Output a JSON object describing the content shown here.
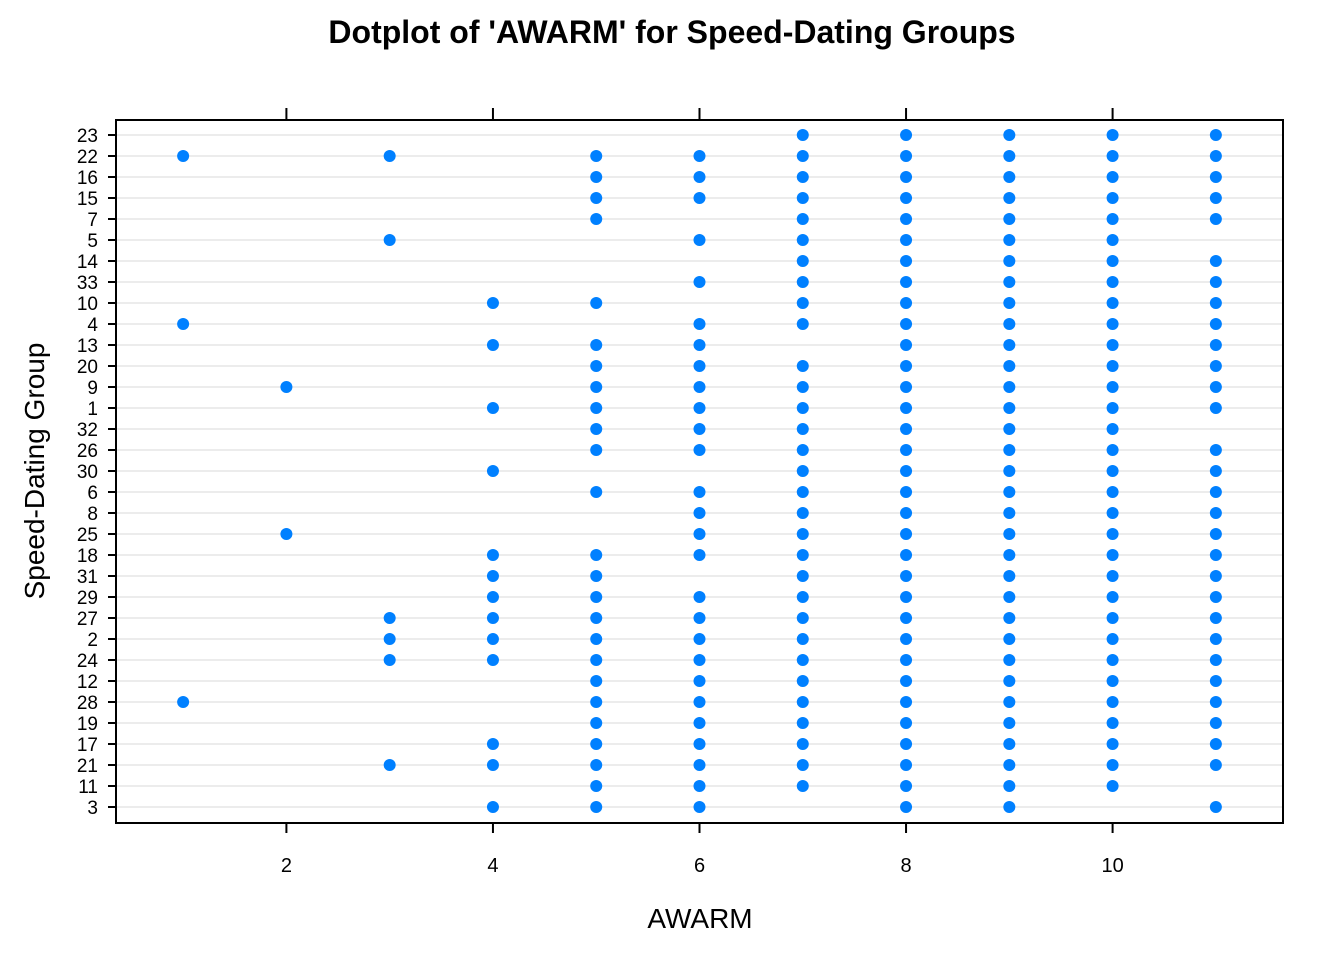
{
  "chart_data": {
    "type": "scatter",
    "title": "Dotplot of 'AWARM' for Speed-Dating Groups",
    "xlabel": "AWARM",
    "ylabel": "Speed-Dating Group",
    "xlim": [
      0.35,
      11.65
    ],
    "xticks": [
      2,
      4,
      6,
      8,
      10
    ],
    "grid": "horizontal",
    "point_color": "#0080ff",
    "categories": [
      "23",
      "22",
      "16",
      "15",
      "7",
      "5",
      "14",
      "33",
      "10",
      "4",
      "13",
      "20",
      "9",
      "1",
      "32",
      "26",
      "30",
      "6",
      "8",
      "25",
      "18",
      "31",
      "29",
      "27",
      "2",
      "24",
      "12",
      "28",
      "19",
      "17",
      "21",
      "11",
      "3"
    ],
    "points": [
      {
        "group": "23",
        "x": [
          7,
          8,
          9,
          10,
          11
        ]
      },
      {
        "group": "22",
        "x": [
          1,
          3,
          5,
          6,
          7,
          8,
          9,
          10,
          11
        ]
      },
      {
        "group": "16",
        "x": [
          5,
          6,
          7,
          8,
          9,
          10,
          11
        ]
      },
      {
        "group": "15",
        "x": [
          5,
          6,
          7,
          8,
          9,
          10,
          11
        ]
      },
      {
        "group": "7",
        "x": [
          5,
          7,
          8,
          9,
          10,
          11
        ]
      },
      {
        "group": "5",
        "x": [
          3,
          6,
          7,
          8,
          9,
          10
        ]
      },
      {
        "group": "14",
        "x": [
          7,
          8,
          9,
          10,
          11
        ]
      },
      {
        "group": "33",
        "x": [
          6,
          7,
          8,
          9,
          10,
          11
        ]
      },
      {
        "group": "10",
        "x": [
          4,
          5,
          7,
          8,
          9,
          10,
          11
        ]
      },
      {
        "group": "4",
        "x": [
          1,
          6,
          7,
          8,
          9,
          10,
          11
        ]
      },
      {
        "group": "13",
        "x": [
          4,
          5,
          6,
          8,
          9,
          10,
          11
        ]
      },
      {
        "group": "20",
        "x": [
          5,
          6,
          7,
          8,
          9,
          10,
          11
        ]
      },
      {
        "group": "9",
        "x": [
          2,
          5,
          6,
          7,
          8,
          9,
          10,
          11
        ]
      },
      {
        "group": "1",
        "x": [
          4,
          5,
          6,
          7,
          8,
          9,
          10,
          11
        ]
      },
      {
        "group": "32",
        "x": [
          5,
          6,
          7,
          8,
          9,
          10
        ]
      },
      {
        "group": "26",
        "x": [
          5,
          6,
          7,
          8,
          9,
          10,
          11
        ]
      },
      {
        "group": "30",
        "x": [
          4,
          7,
          8,
          9,
          10,
          11
        ]
      },
      {
        "group": "6",
        "x": [
          5,
          6,
          7,
          8,
          9,
          10,
          11
        ]
      },
      {
        "group": "8",
        "x": [
          6,
          7,
          8,
          9,
          10,
          11
        ]
      },
      {
        "group": "25",
        "x": [
          2,
          6,
          7,
          8,
          9,
          10,
          11
        ]
      },
      {
        "group": "18",
        "x": [
          4,
          5,
          6,
          7,
          8,
          9,
          10,
          11
        ]
      },
      {
        "group": "31",
        "x": [
          4,
          5,
          7,
          8,
          9,
          10,
          11
        ]
      },
      {
        "group": "29",
        "x": [
          4,
          5,
          6,
          7,
          8,
          9,
          10,
          11
        ]
      },
      {
        "group": "27",
        "x": [
          3,
          4,
          5,
          6,
          7,
          8,
          9,
          10,
          11
        ]
      },
      {
        "group": "2",
        "x": [
          3,
          4,
          5,
          6,
          7,
          8,
          9,
          10,
          11
        ]
      },
      {
        "group": "24",
        "x": [
          3,
          4,
          5,
          6,
          7,
          8,
          9,
          10,
          11
        ]
      },
      {
        "group": "12",
        "x": [
          5,
          6,
          7,
          8,
          9,
          10,
          11
        ]
      },
      {
        "group": "28",
        "x": [
          1,
          5,
          6,
          7,
          8,
          9,
          10,
          11
        ]
      },
      {
        "group": "19",
        "x": [
          5,
          6,
          7,
          8,
          9,
          10,
          11
        ]
      },
      {
        "group": "17",
        "x": [
          4,
          5,
          6,
          7,
          8,
          9,
          10,
          11
        ]
      },
      {
        "group": "21",
        "x": [
          3,
          4,
          5,
          6,
          7,
          8,
          9,
          10,
          11
        ]
      },
      {
        "group": "11",
        "x": [
          5,
          6,
          7,
          8,
          9,
          10
        ]
      },
      {
        "group": "3",
        "x": [
          4,
          5,
          6,
          8,
          9,
          11
        ]
      }
    ]
  }
}
